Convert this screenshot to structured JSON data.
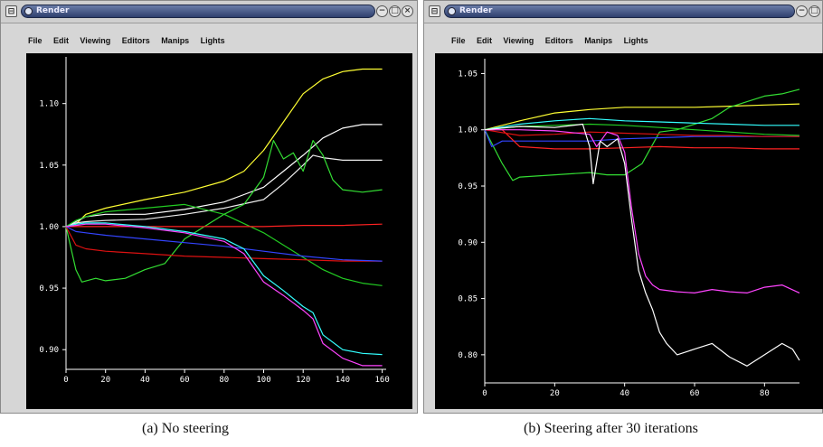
{
  "windows": [
    {
      "title": "Render",
      "menu": [
        "File",
        "Edit",
        "Viewing",
        "Editors",
        "Manips",
        "Lights"
      ],
      "controls": [
        "−",
        "□",
        "×"
      ]
    },
    {
      "title": "Render",
      "menu": [
        "File",
        "Edit",
        "Viewing",
        "Editors",
        "Manips",
        "Lights"
      ],
      "controls": [
        "−",
        "□"
      ]
    }
  ],
  "captions": {
    "a": "(a) No steering",
    "b": "(b) Steering after 30 iterations"
  },
  "chart_data": [
    {
      "type": "line",
      "background": "#000000",
      "x_ticks": [
        "0",
        "20",
        "40",
        "60",
        "80",
        "100",
        "120",
        "140",
        "160"
      ],
      "y_ticks": [
        "1.10",
        "1.05",
        "1.00",
        "0.95",
        "0.90"
      ],
      "xlim": [
        0,
        162
      ],
      "ylim": [
        0.884,
        1.135
      ],
      "series": [
        {
          "color": "#ffff33",
          "x": [
            0,
            5,
            10,
            20,
            40,
            60,
            80,
            90,
            100,
            110,
            120,
            130,
            140,
            150,
            160
          ],
          "y": [
            1.0,
            1.002,
            1.01,
            1.015,
            1.022,
            1.028,
            1.037,
            1.045,
            1.062,
            1.085,
            1.108,
            1.12,
            1.126,
            1.128,
            1.128
          ]
        },
        {
          "color": "#ffffff",
          "x": [
            0,
            5,
            10,
            20,
            40,
            60,
            80,
            90,
            100,
            110,
            120,
            130,
            140,
            150,
            160
          ],
          "y": [
            1.0,
            1.004,
            1.008,
            1.01,
            1.01,
            1.014,
            1.02,
            1.026,
            1.032,
            1.045,
            1.058,
            1.072,
            1.08,
            1.083,
            1.083
          ]
        },
        {
          "color": "#eeeeee",
          "x": [
            0,
            5,
            10,
            20,
            40,
            60,
            80,
            100,
            110,
            120,
            125,
            130,
            140,
            150,
            160
          ],
          "y": [
            1.0,
            1.003,
            1.004,
            1.005,
            1.006,
            1.01,
            1.015,
            1.022,
            1.035,
            1.05,
            1.058,
            1.056,
            1.054,
            1.054,
            1.054
          ]
        },
        {
          "color": "#33dd33",
          "x": [
            0,
            5,
            8,
            15,
            20,
            30,
            40,
            50,
            60,
            70,
            80,
            90,
            100,
            105,
            110,
            115,
            120,
            125,
            130,
            135,
            140,
            150,
            160
          ],
          "y": [
            1.0,
            0.965,
            0.955,
            0.958,
            0.956,
            0.958,
            0.965,
            0.97,
            0.99,
            1.0,
            1.01,
            1.018,
            1.04,
            1.07,
            1.055,
            1.06,
            1.045,
            1.07,
            1.058,
            1.038,
            1.03,
            1.028,
            1.03
          ]
        },
        {
          "color": "#22cc22",
          "x": [
            0,
            5,
            10,
            20,
            40,
            60,
            80,
            100,
            120,
            130,
            140,
            150,
            160
          ],
          "y": [
            1.0,
            1.005,
            1.008,
            1.012,
            1.015,
            1.018,
            1.01,
            0.995,
            0.975,
            0.965,
            0.958,
            0.954,
            0.952
          ]
        },
        {
          "color": "#ff2222",
          "x": [
            0,
            5,
            10,
            20,
            40,
            60,
            80,
            100,
            120,
            140,
            160
          ],
          "y": [
            1.0,
            1.0,
            1.0,
            1.0,
            1.0,
            1.0,
            1.0,
            1.0,
            1.001,
            1.001,
            1.002
          ]
        },
        {
          "color": "#dd1111",
          "x": [
            0,
            5,
            10,
            20,
            40,
            60,
            80,
            100,
            120,
            140,
            160
          ],
          "y": [
            1.0,
            0.985,
            0.982,
            0.98,
            0.978,
            0.976,
            0.975,
            0.974,
            0.973,
            0.972,
            0.972
          ]
        },
        {
          "color": "#3344ff",
          "x": [
            0,
            5,
            10,
            20,
            40,
            60,
            80,
            100,
            120,
            140,
            160
          ],
          "y": [
            1.0,
            0.996,
            0.995,
            0.993,
            0.99,
            0.987,
            0.984,
            0.98,
            0.976,
            0.973,
            0.972
          ]
        },
        {
          "color": "#33ffff",
          "x": [
            0,
            5,
            10,
            20,
            40,
            60,
            80,
            90,
            100,
            110,
            120,
            125,
            130,
            140,
            150,
            160
          ],
          "y": [
            1.0,
            1.002,
            1.003,
            1.003,
            1.0,
            0.996,
            0.99,
            0.982,
            0.96,
            0.948,
            0.935,
            0.93,
            0.912,
            0.9,
            0.897,
            0.896
          ]
        },
        {
          "color": "#ff44ff",
          "x": [
            0,
            5,
            10,
            20,
            40,
            60,
            80,
            90,
            100,
            110,
            120,
            125,
            130,
            140,
            150,
            160
          ],
          "y": [
            1.0,
            1.001,
            1.002,
            1.002,
            0.999,
            0.995,
            0.988,
            0.978,
            0.955,
            0.944,
            0.932,
            0.925,
            0.905,
            0.893,
            0.887,
            0.887
          ]
        }
      ]
    },
    {
      "type": "line",
      "background": "#000000",
      "x_ticks": [
        "0",
        "20",
        "40",
        "60",
        "80"
      ],
      "y_ticks": [
        "1.05",
        "1.00",
        "0.95",
        "0.90",
        "0.85",
        "0.80"
      ],
      "xlim": [
        0,
        90
      ],
      "ylim": [
        0.775,
        1.06
      ],
      "series": [
        {
          "color": "#ffff33",
          "x": [
            0,
            10,
            20,
            30,
            40,
            50,
            60,
            70,
            80,
            90
          ],
          "y": [
            1.0,
            1.008,
            1.015,
            1.018,
            1.02,
            1.02,
            1.02,
            1.021,
            1.022,
            1.023
          ]
        },
        {
          "color": "#33dd33",
          "x": [
            0,
            5,
            8,
            10,
            20,
            30,
            35,
            40,
            45,
            50,
            55,
            60,
            65,
            70,
            75,
            80,
            85,
            90
          ],
          "y": [
            1.0,
            0.97,
            0.955,
            0.958,
            0.96,
            0.962,
            0.96,
            0.96,
            0.97,
            0.998,
            1.0,
            1.005,
            1.01,
            1.02,
            1.025,
            1.03,
            1.032,
            1.036
          ]
        },
        {
          "color": "#22cc22",
          "x": [
            0,
            10,
            20,
            30,
            40,
            50,
            60,
            70,
            80,
            90
          ],
          "y": [
            1.0,
            1.003,
            1.004,
            1.005,
            1.004,
            1.002,
            1.0,
            0.998,
            0.996,
            0.995
          ]
        },
        {
          "color": "#33ffff",
          "x": [
            0,
            10,
            20,
            30,
            40,
            50,
            60,
            70,
            80,
            90
          ],
          "y": [
            1.0,
            1.005,
            1.008,
            1.01,
            1.008,
            1.007,
            1.006,
            1.005,
            1.004,
            1.004
          ]
        },
        {
          "color": "#3344ff",
          "x": [
            0,
            2,
            5,
            10,
            20,
            30,
            40,
            50,
            60,
            70,
            80,
            90
          ],
          "y": [
            1.0,
            0.985,
            0.99,
            0.99,
            0.99,
            0.99,
            0.992,
            0.993,
            0.994,
            0.994,
            0.994,
            0.994
          ]
        },
        {
          "color": "#ff2222",
          "x": [
            0,
            5,
            10,
            20,
            30,
            40,
            50,
            60,
            70,
            80,
            90
          ],
          "y": [
            1.0,
            1.0,
            0.985,
            0.983,
            0.983,
            0.984,
            0.985,
            0.984,
            0.984,
            0.983,
            0.983
          ]
        },
        {
          "color": "#dd1111",
          "x": [
            0,
            10,
            20,
            30,
            40,
            50,
            60,
            70,
            80,
            90
          ],
          "y": [
            1.0,
            0.995,
            0.996,
            0.998,
            0.997,
            0.996,
            0.995,
            0.995,
            0.994,
            0.994
          ]
        },
        {
          "color": "#ff44ff",
          "x": [
            0,
            10,
            20,
            30,
            32,
            35,
            38,
            40,
            42,
            44,
            46,
            48,
            50,
            55,
            60,
            65,
            70,
            75,
            80,
            85,
            90
          ],
          "y": [
            1.0,
            1.0,
            0.999,
            0.996,
            0.985,
            0.998,
            0.995,
            0.98,
            0.93,
            0.89,
            0.87,
            0.862,
            0.858,
            0.856,
            0.855,
            0.858,
            0.856,
            0.855,
            0.86,
            0.862,
            0.855
          ]
        },
        {
          "color": "#ffffff",
          "x": [
            0,
            10,
            20,
            28,
            30,
            31,
            33,
            35,
            38,
            40,
            42,
            44,
            46,
            48,
            50,
            52,
            55,
            60,
            65,
            70,
            75,
            80,
            85,
            88,
            90
          ],
          "y": [
            1.0,
            1.003,
            1.002,
            1.005,
            0.985,
            0.952,
            0.99,
            0.985,
            0.992,
            0.97,
            0.92,
            0.875,
            0.855,
            0.84,
            0.82,
            0.81,
            0.8,
            0.805,
            0.81,
            0.798,
            0.79,
            0.8,
            0.81,
            0.805,
            0.795
          ]
        }
      ]
    }
  ]
}
